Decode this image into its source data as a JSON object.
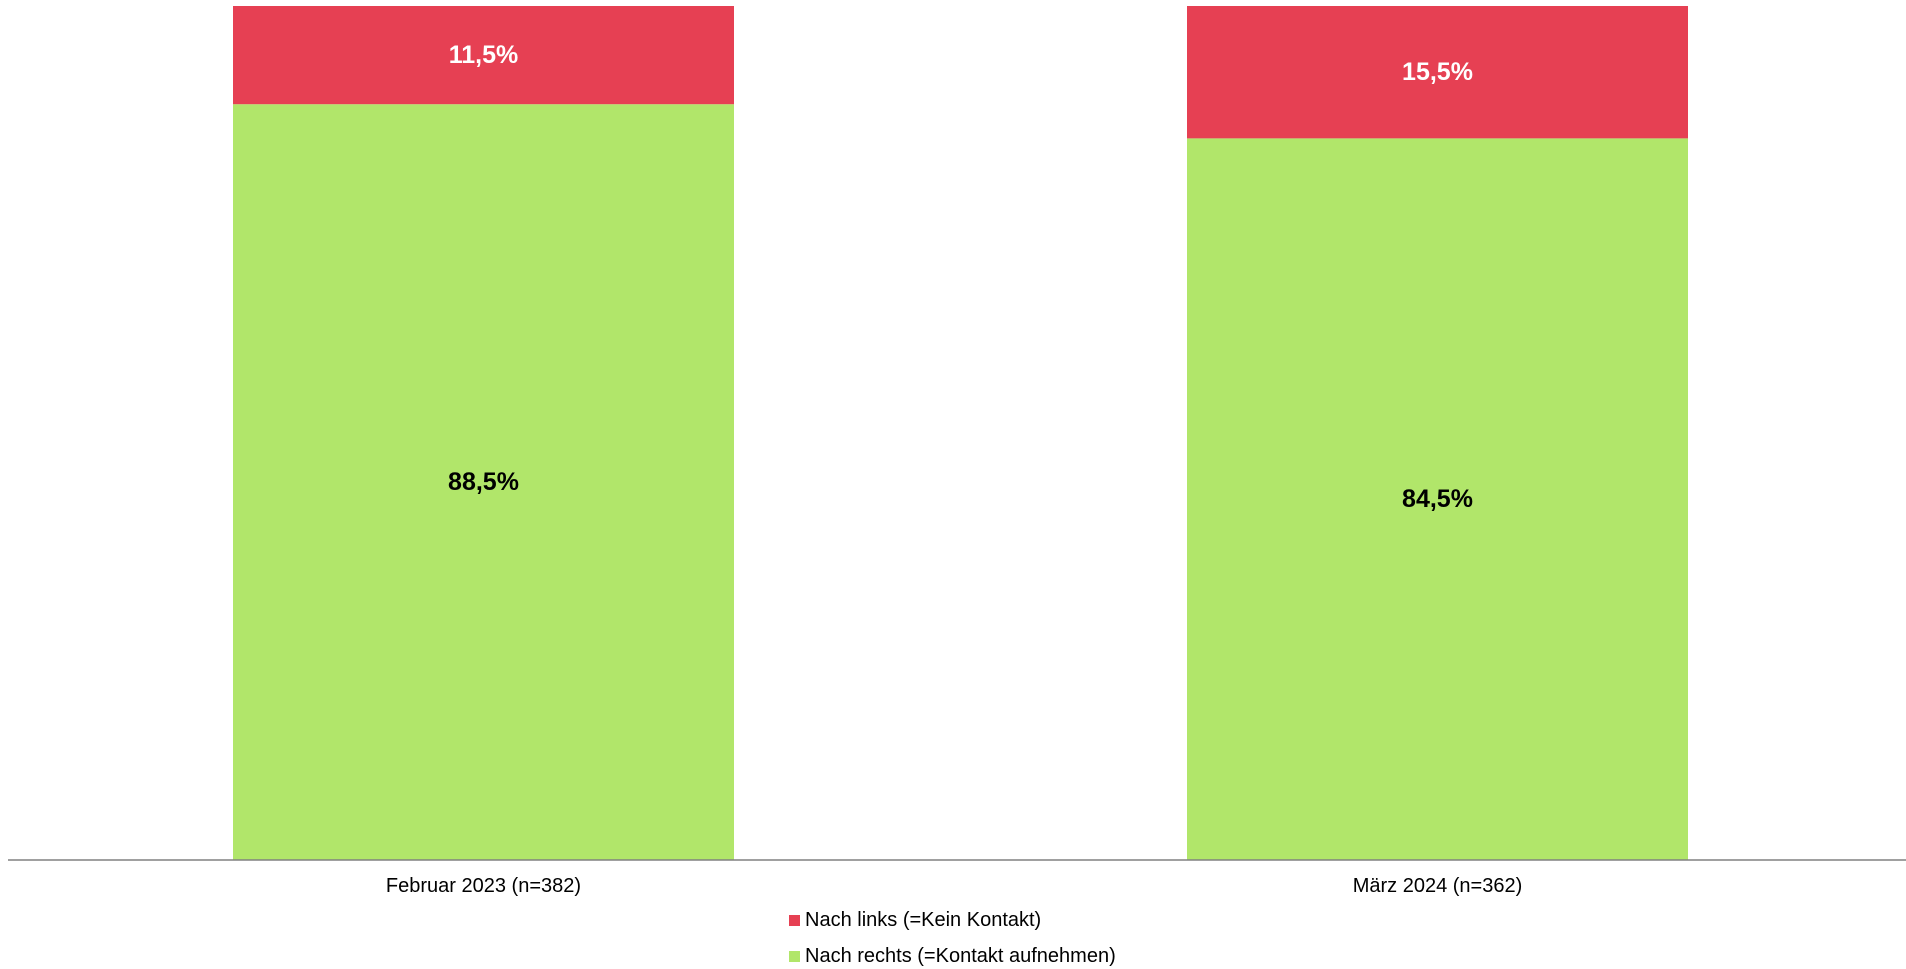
{
  "chart_data": {
    "type": "bar",
    "stacked": true,
    "categories": [
      "Februar 2023 (n=382)",
      "März 2024 (n=362)"
    ],
    "series": [
      {
        "name": "Nach rechts (=Kontakt aufnehmen)",
        "values": [
          88.5,
          84.5
        ],
        "labels": [
          "88,5%",
          "84,5%"
        ],
        "color": "#b1e66a",
        "label_color": "#000000"
      },
      {
        "name": "Nach links (=Kein Kontakt)",
        "values": [
          11.5,
          15.5
        ],
        "labels": [
          "11,5%",
          "15,5%"
        ],
        "color": "#e64053",
        "label_color": "#ffffff"
      }
    ],
    "ylim": [
      0,
      100
    ],
    "unit": "%",
    "grid": false,
    "legend_position": "bottom"
  },
  "legend": {
    "items": [
      {
        "label": "Nach links (=Kein Kontakt)",
        "color": "#e64053"
      },
      {
        "label": "Nach rechts (=Kontakt aufnehmen)",
        "color": "#b1e66a"
      }
    ]
  },
  "colors": {
    "axis": "#808080",
    "background": "#ffffff"
  }
}
